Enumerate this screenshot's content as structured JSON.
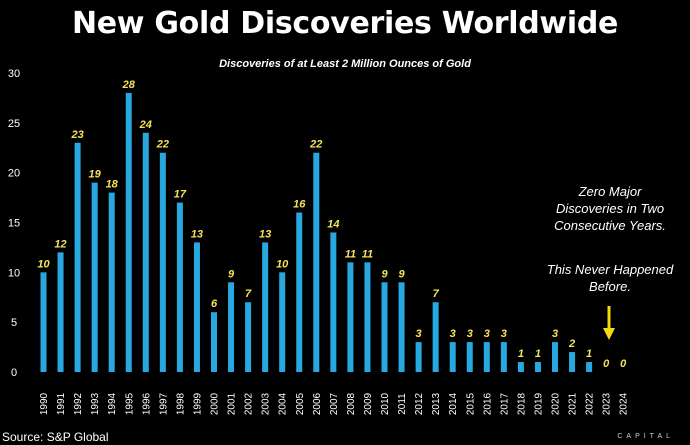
{
  "header": {
    "title": "New Gold Discoveries Worldwide",
    "subtitle": "Discoveries of at Least 2 Million Ounces of Gold"
  },
  "annotations": {
    "line1": "Zero Major Discoveries in Two Consecutive Years.",
    "line2": "This Never Happened Before."
  },
  "footer": {
    "source": "Source: S&P Global",
    "watermark": "CAPITAL"
  },
  "colors": {
    "bar": "#29a8e0",
    "label": "#f2e35a",
    "arrow": "#f5d90a",
    "background": "#000000"
  },
  "chart_data": {
    "type": "bar",
    "title": "New Gold Discoveries Worldwide",
    "subtitle": "Discoveries of at Least 2 Million Ounces of Gold",
    "xlabel": "",
    "ylabel": "",
    "ylim": [
      0,
      30
    ],
    "yticks": [
      0,
      5,
      10,
      15,
      20,
      25,
      30
    ],
    "grid": false,
    "categories": [
      "1990",
      "1991",
      "1992",
      "1993",
      "1994",
      "1995",
      "1996",
      "1997",
      "1998",
      "1999",
      "2000",
      "2001",
      "2002",
      "2003",
      "2004",
      "2005",
      "2006",
      "2007",
      "2008",
      "2009",
      "2010",
      "2011",
      "2012",
      "2013",
      "2014",
      "2015",
      "2016",
      "2017",
      "2018",
      "2019",
      "2020",
      "2021",
      "2022",
      "2023",
      "2024"
    ],
    "values": [
      10,
      12,
      23,
      19,
      18,
      28,
      24,
      22,
      17,
      13,
      6,
      9,
      7,
      13,
      10,
      16,
      22,
      14,
      11,
      11,
      9,
      9,
      3,
      7,
      3,
      3,
      3,
      3,
      1,
      1,
      3,
      2,
      1,
      0,
      0
    ]
  }
}
